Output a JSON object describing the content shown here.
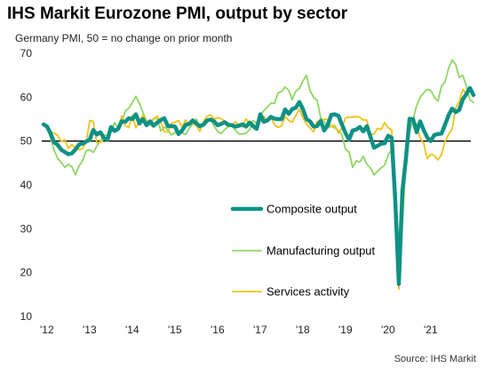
{
  "header": {
    "title": "IHS Markit Eurozone PMI, output by sector",
    "subtitle": "Germany PMI, 50 = no change on prior month",
    "source": "Source: IHS Markit"
  },
  "colors": {
    "composite": "#0f9185",
    "manufacturing": "#8fd663",
    "services": "#f2c218"
  },
  "chart_data": {
    "type": "line",
    "title": "IHS Markit Eurozone PMI, output by sector",
    "subtitle": "Germany PMI, 50 = no change on prior month",
    "xlabel": "",
    "ylabel": "",
    "ylim": [
      10,
      70
    ],
    "yticks": [
      10,
      20,
      30,
      40,
      50,
      60,
      70
    ],
    "xticks": [
      "'12",
      "'13",
      "'14",
      "'15",
      "'16",
      "'17",
      "'18",
      "'19",
      "'20",
      "'21"
    ],
    "reference_line": 50,
    "grid": false,
    "legend": "center-right",
    "x_note": "monthly observations starting Jan 2012",
    "series": [
      {
        "name": "Composite output",
        "color": "#0f9185",
        "values": [
          53.8,
          53.3,
          51.7,
          49.7,
          49.1,
          48.0,
          47.5,
          47.0,
          47.2,
          48.1,
          49.2,
          49.4,
          49.9,
          50.3,
          52.5,
          51.5,
          52.0,
          50.7,
          50.3,
          53.2,
          52.3,
          52.8,
          54.5,
          54.4,
          55.2,
          55.0,
          56.1,
          54.0,
          55.0,
          53.6,
          54.5,
          53.5,
          54.2,
          54.8,
          55.2,
          53.4,
          53.4,
          53.3,
          51.6,
          52.4,
          53.7,
          53.9,
          54.7,
          54.0,
          53.4,
          53.7,
          54.7,
          54.9,
          54.5,
          53.6,
          53.9,
          54.3,
          53.7,
          53.6,
          53.3,
          53.5,
          53.8,
          53.3,
          54.2,
          53.4,
          52.8,
          56.1,
          54.4,
          54.7,
          55.5,
          55.1,
          55.0,
          55.0,
          57.2,
          56.2,
          57.3,
          57.6,
          58.9,
          57.3,
          55.0,
          54.5,
          53.3,
          53.4,
          54.6,
          52.4,
          53.7,
          56.0,
          56.1,
          55.8,
          53.7,
          51.8,
          50.3,
          52.4,
          52.6,
          53.2,
          52.2,
          53.4,
          51.0,
          48.5,
          48.9,
          49.4,
          49.5,
          51.2,
          50.7,
          36.4,
          17.4,
          38.6,
          46.0,
          55.0,
          55.0,
          52.0,
          54.5,
          52.5,
          50.8,
          50.0,
          51.4,
          51.6,
          51.7,
          53.7,
          55.9,
          57.4,
          56.6,
          57.1,
          59.5,
          60.7,
          62.1,
          60.5
        ],
        "markers": false
      },
      {
        "name": "Manufacturing output",
        "color": "#8fd663",
        "values": [
          53.6,
          53.1,
          50.7,
          47.9,
          46.0,
          45.1,
          44.0,
          44.7,
          44.1,
          42.3,
          44.3,
          45.5,
          47.8,
          48.0,
          47.4,
          48.8,
          50.1,
          51.3,
          51.4,
          52.0,
          54.2,
          53.0,
          54.2,
          56.8,
          57.5,
          58.8,
          60.2,
          58.5,
          56.5,
          54.4,
          53.6,
          55.2,
          55.1,
          52.3,
          53.2,
          52.5,
          51.4,
          51.9,
          51.8,
          51.9,
          51.5,
          52.9,
          53.9,
          55.0,
          53.1,
          53.6,
          54.2,
          54.9,
          53.4,
          52.2,
          51.7,
          52.6,
          53.3,
          53.5,
          52.5,
          51.6,
          51.6,
          51.8,
          52.6,
          54.7,
          54.0,
          56.0,
          56.9,
          57.8,
          58.6,
          58.6,
          61.0,
          61.3,
          62.3,
          61.6,
          59.4,
          61.4,
          62.0,
          63.7,
          65.0,
          61.5,
          60.0,
          59.3,
          55.3,
          54.5,
          53.0,
          53.4,
          53.0,
          52.4,
          51.4,
          48.1,
          47.5,
          44.0,
          45.5,
          45.2,
          46.5,
          44.7,
          43.9,
          42.3,
          43.1,
          43.9,
          44.5,
          46.8,
          48.1,
          38.0,
          17.1,
          30.7,
          45.4,
          52.0,
          55.0,
          58.0,
          60.0,
          61.0,
          61.8,
          61.5,
          60.0,
          59.1,
          62.5,
          63.5,
          66.6,
          68.5,
          67.5,
          64.5,
          65.0,
          62.5,
          59.4,
          58.8
        ],
        "markers": false
      },
      {
        "name": "Services activity",
        "color": "#f2c218",
        "values": [
          53.7,
          52.8,
          52.1,
          51.8,
          51.3,
          49.9,
          50.3,
          48.3,
          49.2,
          48.4,
          48.0,
          48.3,
          49.7,
          54.7,
          54.5,
          49.6,
          49.7,
          50.4,
          50.6,
          52.8,
          52.5,
          52.9,
          55.7,
          53.5,
          53.1,
          55.9,
          53.0,
          54.7,
          56.0,
          54.6,
          54.6,
          54.9,
          55.7,
          54.4,
          52.1,
          52.1,
          54.0,
          54.3,
          54.7,
          53.2,
          54.8,
          53.7,
          53.9,
          53.6,
          52.2,
          54.5,
          55.6,
          56.0,
          55.0,
          55.3,
          55.1,
          54.5,
          53.2,
          53.7,
          54.4,
          53.5,
          53.2,
          55.1,
          53.9,
          53.8,
          53.4,
          54.4,
          55.6,
          54.7,
          55.4,
          53.7,
          53.1,
          53.5,
          55.6,
          54.7,
          54.3,
          55.8,
          57.3,
          55.3,
          53.9,
          53.0,
          52.1,
          54.5,
          54.2,
          55.0,
          54.9,
          53.3,
          53.6,
          51.8,
          53.0,
          55.3,
          55.4,
          55.4,
          55.6,
          55.4,
          54.8,
          54.8,
          51.4,
          51.6,
          52.9,
          52.6,
          54.2,
          53.0,
          52.5,
          31.7,
          16.2,
          32.6,
          47.0,
          55.5,
          55.0,
          53.8,
          50.7,
          49.5,
          46.0,
          47.0,
          46.7,
          45.7,
          46.9,
          49.9,
          51.5,
          52.8,
          57.5,
          59.0,
          61.8,
          60.8
        ],
        "markers": false
      }
    ]
  }
}
